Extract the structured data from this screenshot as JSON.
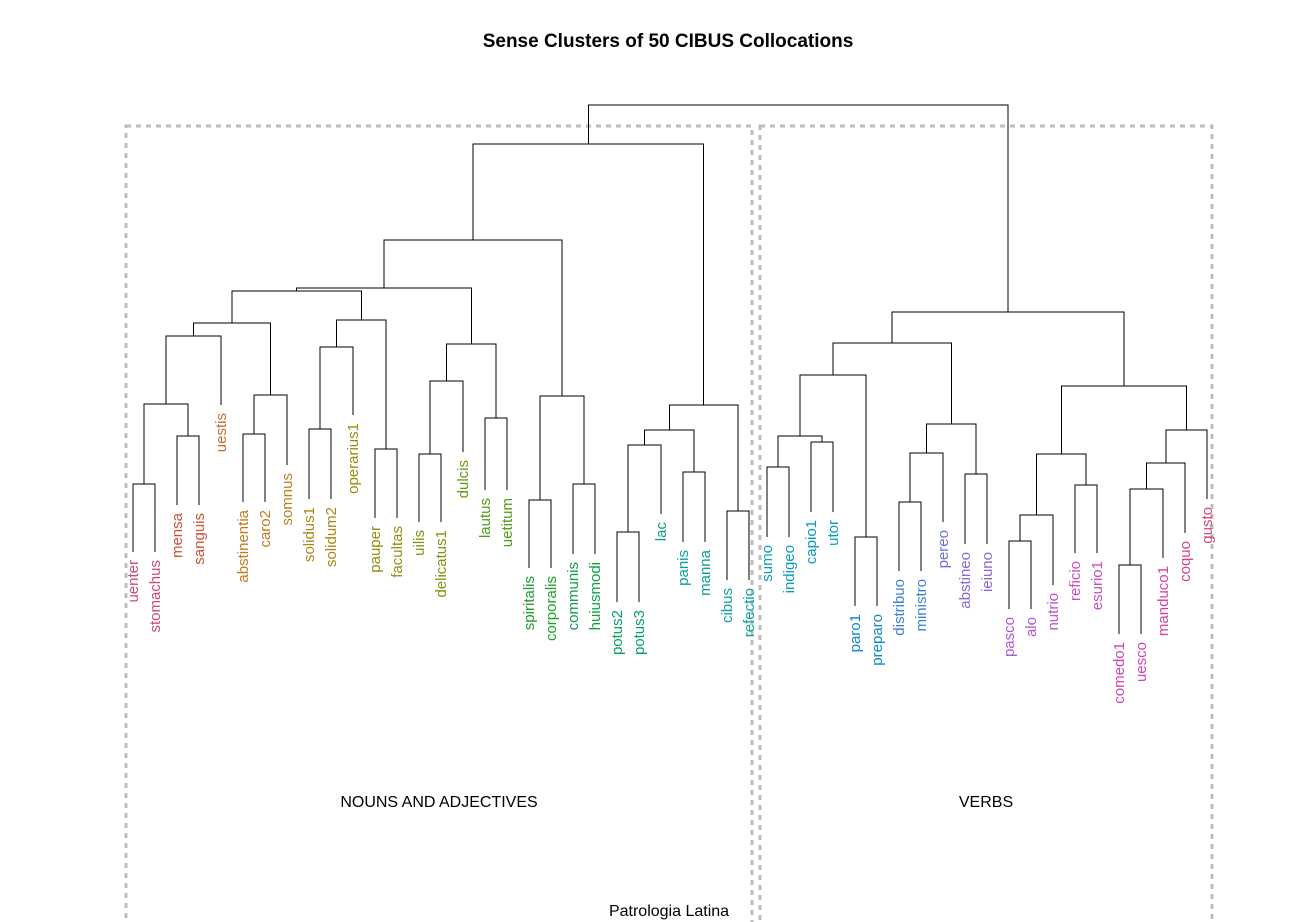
{
  "title": "Sense Clusters of 50 CIBUS Collocations",
  "caption": "Patrologia Latina",
  "groups": [
    {
      "label": "NOUNS AND ADJECTIVES"
    },
    {
      "label": "VERBS"
    }
  ],
  "leaves": [
    {
      "label": "uenter",
      "color": "#cc4c6e"
    },
    {
      "label": "stomachus",
      "color": "#cc4c6e"
    },
    {
      "label": "mensa",
      "color": "#c9533c"
    },
    {
      "label": "sanguis",
      "color": "#c9533c"
    },
    {
      "label": "uestis",
      "color": "#c66b2f"
    },
    {
      "label": "abstinentia",
      "color": "#c07a1f"
    },
    {
      "label": "caro2",
      "color": "#c07a1f"
    },
    {
      "label": "somnus",
      "color": "#b88220"
    },
    {
      "label": "solidus1",
      "color": "#aa8714"
    },
    {
      "label": "solidum2",
      "color": "#aa8714"
    },
    {
      "label": "operarius1",
      "color": "#9f8a10"
    },
    {
      "label": "pauper",
      "color": "#938d10"
    },
    {
      "label": "facultas",
      "color": "#938d10"
    },
    {
      "label": "uilis",
      "color": "#7f9311"
    },
    {
      "label": "delicatus1",
      "color": "#7f9311"
    },
    {
      "label": "dulcis",
      "color": "#6c9912"
    },
    {
      "label": "lautus",
      "color": "#4e9f14"
    },
    {
      "label": "uetitum",
      "color": "#4e9f14"
    },
    {
      "label": "spiritalis",
      "color": "#1f9e2e"
    },
    {
      "label": "corporalis",
      "color": "#1f9e2e"
    },
    {
      "label": "communis",
      "color": "#119f47"
    },
    {
      "label": "huiusmodi",
      "color": "#119f47"
    },
    {
      "label": "potus2",
      "color": "#0aa062"
    },
    {
      "label": "potus3",
      "color": "#0aa062"
    },
    {
      "label": "lac",
      "color": "#0aa07f"
    },
    {
      "label": "panis",
      "color": "#0ba095"
    },
    {
      "label": "manna",
      "color": "#0ba095"
    },
    {
      "label": "cibus",
      "color": "#0ea0a5"
    },
    {
      "label": "refectio",
      "color": "#0ea0a5"
    },
    {
      "label": "sumo",
      "color": "#0c9fb7"
    },
    {
      "label": "indigeo",
      "color": "#0c9fb7"
    },
    {
      "label": "capio1",
      "color": "#0a98c4"
    },
    {
      "label": "utor",
      "color": "#0a98c4"
    },
    {
      "label": "paro1",
      "color": "#1186d1"
    },
    {
      "label": "preparo",
      "color": "#1186d1"
    },
    {
      "label": "distribuo",
      "color": "#3f7fd6"
    },
    {
      "label": "ministro",
      "color": "#3f7fd6"
    },
    {
      "label": "pereo",
      "color": "#6a72d6"
    },
    {
      "label": "abstineo",
      "color": "#8a68d6"
    },
    {
      "label": "ieiuno",
      "color": "#8a68d6"
    },
    {
      "label": "pasco",
      "color": "#b058d2"
    },
    {
      "label": "alo",
      "color": "#b058d2"
    },
    {
      "label": "nutrio",
      "color": "#c052cb"
    },
    {
      "label": "reficio",
      "color": "#c84ec2"
    },
    {
      "label": "esurio1",
      "color": "#c84ec2"
    },
    {
      "label": "comedo1",
      "color": "#d044b8"
    },
    {
      "label": "uesco",
      "color": "#d044b8"
    },
    {
      "label": "manduco1",
      "color": "#d3409f"
    },
    {
      "label": "coquo",
      "color": "#d3448a"
    },
    {
      "label": "gusto",
      "color": "#d04a78"
    }
  ]
}
